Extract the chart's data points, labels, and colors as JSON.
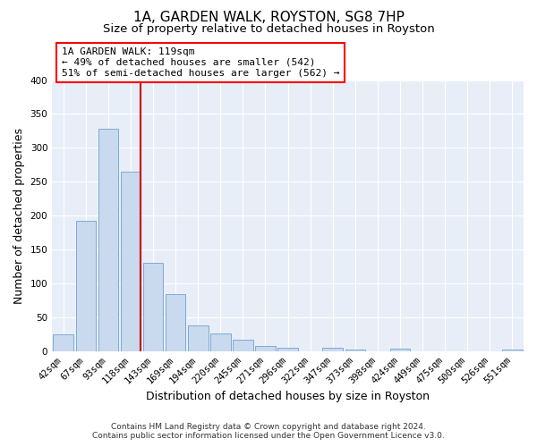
{
  "title": "1A, GARDEN WALK, ROYSTON, SG8 7HP",
  "subtitle": "Size of property relative to detached houses in Royston",
  "xlabel": "Distribution of detached houses by size in Royston",
  "ylabel": "Number of detached properties",
  "bar_labels": [
    "42sqm",
    "67sqm",
    "93sqm",
    "118sqm",
    "143sqm",
    "169sqm",
    "194sqm",
    "220sqm",
    "245sqm",
    "271sqm",
    "296sqm",
    "322sqm",
    "347sqm",
    "373sqm",
    "398sqm",
    "424sqm",
    "449sqm",
    "475sqm",
    "500sqm",
    "526sqm",
    "551sqm"
  ],
  "bar_values": [
    25,
    193,
    328,
    265,
    130,
    85,
    38,
    26,
    17,
    8,
    5,
    0,
    5,
    2,
    0,
    4,
    0,
    0,
    0,
    0,
    3
  ],
  "bar_color": "#c9d9ee",
  "bar_edge_color": "#7dacd4",
  "marker_index": 3,
  "marker_color": "#cc0000",
  "ylim": [
    0,
    400
  ],
  "yticks": [
    0,
    50,
    100,
    150,
    200,
    250,
    300,
    350,
    400
  ],
  "annotation_title": "1A GARDEN WALK: 119sqm",
  "annotation_line1": "← 49% of detached houses are smaller (542)",
  "annotation_line2": "51% of semi-detached houses are larger (562) →",
  "footer_line1": "Contains HM Land Registry data © Crown copyright and database right 2024.",
  "footer_line2": "Contains public sector information licensed under the Open Government Licence v3.0.",
  "fig_background_color": "#ffffff",
  "plot_bg_color": "#e8eef7",
  "grid_color": "#ffffff",
  "title_fontsize": 11,
  "subtitle_fontsize": 9.5,
  "axis_label_fontsize": 9,
  "tick_fontsize": 7.5,
  "footer_fontsize": 6.5,
  "annotation_fontsize": 8
}
